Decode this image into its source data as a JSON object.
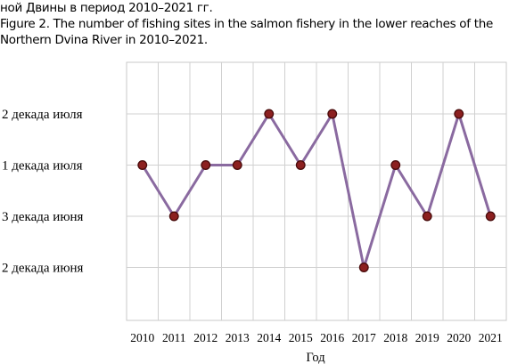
{
  "caption": {
    "line1": "ной Двины в период 2010–2021 гг.",
    "line2": "Figure 2. The number of fishing sites in the salmon fishery in the lower reaches of the",
    "line3": "Northern Dvina River in 2010–2021."
  },
  "chart_data": {
    "type": "line",
    "title": "",
    "xlabel": "Год",
    "ylabel": "",
    "categories": [
      "2010",
      "2011",
      "2012",
      "2013",
      "2014",
      "2015",
      "2016",
      "2017",
      "2018",
      "2019",
      "2020",
      "2021"
    ],
    "y_levels": [
      "2 декада июня",
      "3 декада июня",
      "1 декада июля",
      "2 декада июля"
    ],
    "y_axis_order": [
      "2 декада июля",
      "1 декада июля",
      "3 декада июня",
      "2 декада июня"
    ],
    "values": [
      3,
      2,
      3,
      3,
      4,
      3,
      4,
      1,
      3,
      2,
      4,
      2
    ],
    "grid": true,
    "legend": "none",
    "colors": {
      "line": "#8a6aa0",
      "marker_fill": "#8c2020",
      "marker_edge": "#4a0c0c",
      "grid": "#d0d0d0",
      "frame": "#c8c8c8"
    }
  }
}
